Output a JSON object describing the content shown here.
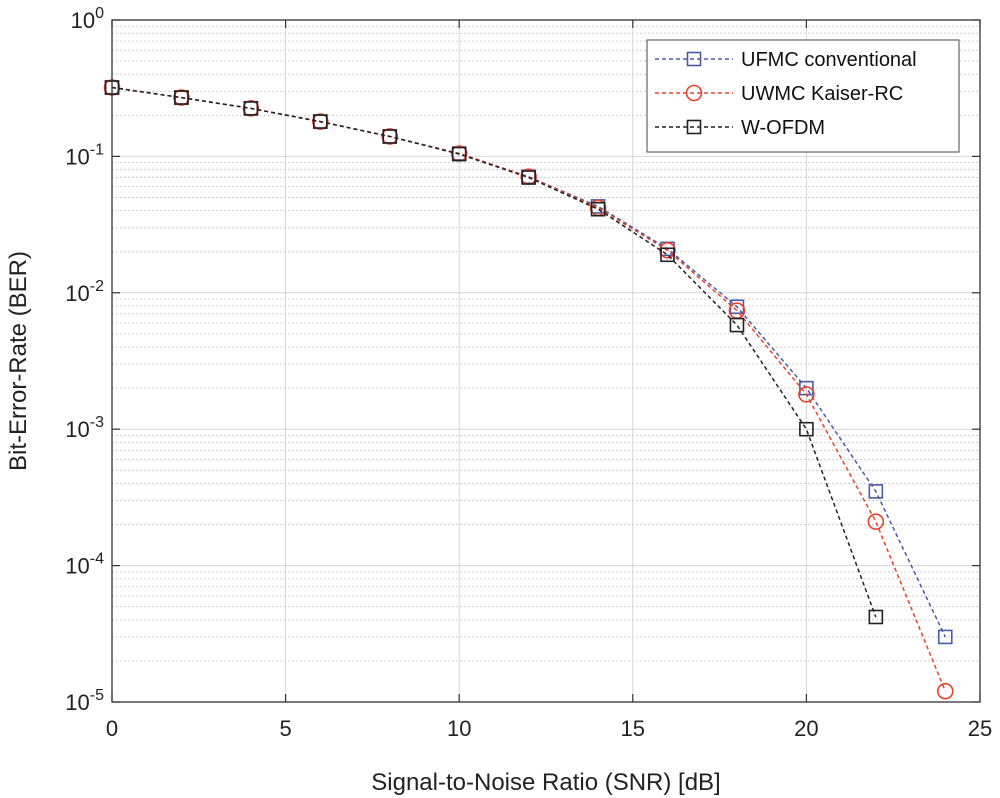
{
  "chart_data": {
    "type": "line",
    "xlabel": "Signal-to-Noise Ratio (SNR) [dB]",
    "ylabel": "Bit-Error-Rate (BER)",
    "xlim": [
      0,
      25
    ],
    "ylim": [
      1e-05,
      1
    ],
    "yscale": "log",
    "grid": true,
    "legend_position": "top-right",
    "x_ticks": [
      0,
      5,
      10,
      15,
      20,
      25
    ],
    "y_ticks": [
      {
        "value": 1,
        "base": "10",
        "exp": "0"
      },
      {
        "value": 0.1,
        "base": "10",
        "exp": "-1"
      },
      {
        "value": 0.01,
        "base": "10",
        "exp": "-2"
      },
      {
        "value": 0.001,
        "base": "10",
        "exp": "-3"
      },
      {
        "value": 0.0001,
        "base": "10",
        "exp": "-4"
      },
      {
        "value": 1e-05,
        "base": "10",
        "exp": "-5"
      }
    ],
    "series": [
      {
        "name": "UFMC conventional",
        "color": "#4a5aa8",
        "marker": "square",
        "x": [
          0,
          2,
          4,
          6,
          8,
          10,
          12,
          14,
          16,
          18,
          20,
          22,
          24
        ],
        "y": [
          0.32,
          0.27,
          0.225,
          0.18,
          0.14,
          0.105,
          0.071,
          0.043,
          0.021,
          0.0079,
          0.002,
          0.00035,
          3e-05
        ]
      },
      {
        "name": "UWMC Kaiser-RC",
        "color": "#e8432a",
        "marker": "circle",
        "x": [
          0,
          2,
          4,
          6,
          8,
          10,
          12,
          14,
          16,
          18,
          20,
          22,
          24
        ],
        "y": [
          0.32,
          0.27,
          0.225,
          0.18,
          0.14,
          0.105,
          0.071,
          0.042,
          0.0205,
          0.0074,
          0.0018,
          0.00021,
          1.2e-05
        ]
      },
      {
        "name": "W-OFDM",
        "color": "#222222",
        "marker": "square",
        "x": [
          0,
          2,
          4,
          6,
          8,
          10,
          12,
          14,
          16,
          18,
          20,
          22
        ],
        "y": [
          0.32,
          0.27,
          0.225,
          0.18,
          0.14,
          0.104,
          0.07,
          0.041,
          0.019,
          0.0058,
          0.001,
          4.2e-05
        ]
      }
    ]
  }
}
